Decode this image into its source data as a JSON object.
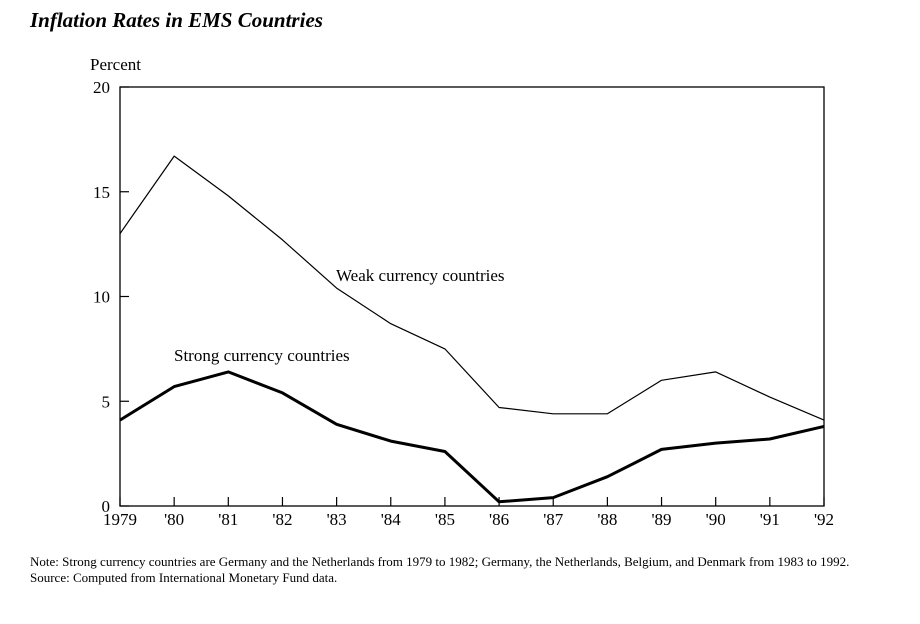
{
  "title": "Inflation Rates in EMS Countries",
  "notes": {
    "note": "Note: Strong currency countries are Germany and the Netherlands from 1979 to 1982; Germany, the Netherlands, Belgium, and Denmark from 1983 to 1992.",
    "source": "Source: Computed from International Monetary Fund data."
  },
  "chart_data": {
    "type": "line",
    "title": "Inflation Rates in EMS Countries",
    "ylabel": "Percent",
    "xlabel": "",
    "categories": [
      "1979",
      "'80",
      "'81",
      "'82",
      "'83",
      "'84",
      "'85",
      "'86",
      "'87",
      "'88",
      "'89",
      "'90",
      "'91",
      "'92"
    ],
    "ylim": [
      0,
      20
    ],
    "yticks": [
      0,
      5,
      10,
      15,
      20
    ],
    "grid": false,
    "legend": "inline labels",
    "series": [
      {
        "name": "Weak currency countries",
        "values": [
          13.0,
          16.7,
          14.8,
          12.7,
          10.4,
          8.7,
          7.5,
          4.7,
          4.4,
          4.4,
          6.0,
          6.4,
          5.2,
          4.1
        ],
        "color": "#000000",
        "width": "thin"
      },
      {
        "name": "Strong currency countries",
        "values": [
          4.1,
          5.7,
          6.4,
          5.4,
          3.9,
          3.1,
          2.6,
          0.2,
          0.4,
          1.4,
          2.7,
          3.0,
          3.2,
          3.8
        ],
        "color": "#000000",
        "width": "thick"
      }
    ]
  }
}
